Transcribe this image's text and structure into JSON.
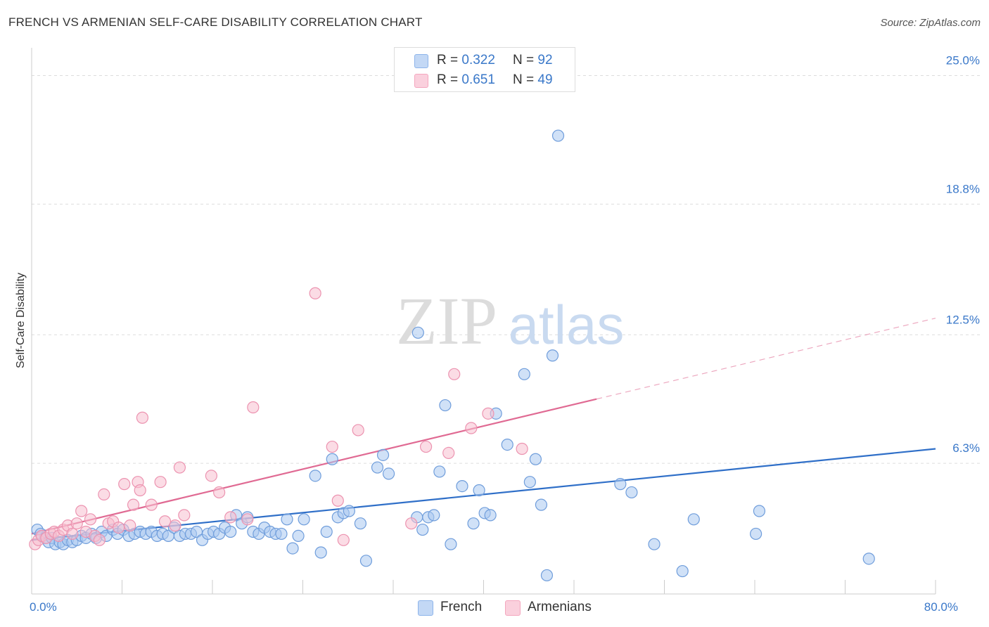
{
  "header": {
    "title": "FRENCH VS ARMENIAN SELF-CARE DISABILITY CORRELATION CHART",
    "source": "Source: ZipAtlas.com"
  },
  "watermark": {
    "zip": "ZIP",
    "atlas": "atlas"
  },
  "legend": {
    "r_label": "R =",
    "n_label": "N =",
    "entries": [
      {
        "name": "French",
        "r": "0.322",
        "n": "92",
        "color": "#8db4ea"
      },
      {
        "name": "Armenians",
        "r": "0.651",
        "n": "49",
        "color": "#f4a6be"
      }
    ]
  },
  "colors": {
    "french_fill": "#a9c8f0",
    "french_stroke": "#6f9ddb",
    "french_line": "#2f6fc8",
    "armenian_fill": "#f8bfd0",
    "armenian_stroke": "#ec93b0",
    "armenian_line": "#e06a93",
    "tick_label": "#3a78c9",
    "grid": "#dddddd"
  },
  "chart_data": {
    "type": "scatter",
    "title": "FRENCH VS ARMENIAN SELF-CARE DISABILITY CORRELATION CHART",
    "xlabel": "",
    "ylabel": "Self-Care Disability",
    "xlim": [
      0,
      80
    ],
    "ylim": [
      0,
      26
    ],
    "x_tick_labels": [
      {
        "value": 0,
        "label": "0.0%"
      },
      {
        "value": 80,
        "label": "80.0%"
      }
    ],
    "y_tick_labels": [
      {
        "value": 6.3,
        "label": "6.3%"
      },
      {
        "value": 12.5,
        "label": "12.5%"
      },
      {
        "value": 18.8,
        "label": "18.8%"
      },
      {
        "value": 25.0,
        "label": "25.0%"
      }
    ],
    "grid": true,
    "legend_position": "top-center",
    "series": [
      {
        "name": "French",
        "trend": {
          "x": [
            0,
            80
          ],
          "y": [
            2.6,
            7.0
          ]
        },
        "points": [
          [
            0.5,
            3.1
          ],
          [
            0.8,
            2.9
          ],
          [
            1.2,
            2.7
          ],
          [
            1.5,
            2.5
          ],
          [
            1.8,
            2.7
          ],
          [
            2.1,
            2.4
          ],
          [
            2.5,
            2.5
          ],
          [
            2.8,
            2.4
          ],
          [
            3.2,
            2.6
          ],
          [
            3.6,
            2.5
          ],
          [
            4.0,
            2.6
          ],
          [
            4.4,
            2.8
          ],
          [
            4.8,
            2.7
          ],
          [
            5.3,
            2.9
          ],
          [
            5.7,
            2.7
          ],
          [
            6.2,
            3.0
          ],
          [
            6.6,
            2.8
          ],
          [
            7.2,
            3.1
          ],
          [
            7.6,
            2.9
          ],
          [
            8.1,
            3.1
          ],
          [
            8.6,
            2.8
          ],
          [
            9.1,
            2.9
          ],
          [
            9.6,
            3.0
          ],
          [
            10.1,
            2.9
          ],
          [
            10.6,
            3.0
          ],
          [
            11.1,
            2.8
          ],
          [
            11.6,
            2.9
          ],
          [
            12.1,
            2.8
          ],
          [
            12.6,
            3.2
          ],
          [
            13.1,
            2.8
          ],
          [
            13.6,
            2.9
          ],
          [
            14.1,
            2.9
          ],
          [
            14.6,
            3.0
          ],
          [
            15.1,
            2.6
          ],
          [
            15.6,
            2.9
          ],
          [
            16.1,
            3.0
          ],
          [
            16.6,
            2.9
          ],
          [
            17.1,
            3.2
          ],
          [
            17.6,
            3.0
          ],
          [
            18.1,
            3.8
          ],
          [
            18.6,
            3.4
          ],
          [
            19.1,
            3.7
          ],
          [
            19.6,
            3.0
          ],
          [
            20.1,
            2.9
          ],
          [
            20.6,
            3.2
          ],
          [
            21.1,
            3.0
          ],
          [
            21.6,
            2.9
          ],
          [
            22.1,
            2.9
          ],
          [
            22.6,
            3.6
          ],
          [
            23.1,
            2.2
          ],
          [
            23.6,
            2.8
          ],
          [
            24.1,
            3.6
          ],
          [
            25.1,
            5.7
          ],
          [
            25.6,
            2.0
          ],
          [
            26.1,
            3.0
          ],
          [
            26.6,
            6.5
          ],
          [
            27.1,
            3.7
          ],
          [
            27.6,
            3.9
          ],
          [
            28.1,
            4.0
          ],
          [
            29.1,
            3.4
          ],
          [
            29.6,
            1.6
          ],
          [
            30.6,
            6.1
          ],
          [
            31.1,
            6.7
          ],
          [
            31.6,
            5.8
          ],
          [
            34.1,
            3.7
          ],
          [
            34.6,
            3.1
          ],
          [
            34.2,
            12.6
          ],
          [
            35.1,
            3.7
          ],
          [
            35.6,
            3.8
          ],
          [
            36.1,
            5.9
          ],
          [
            37.1,
            2.4
          ],
          [
            36.6,
            9.1
          ],
          [
            38.1,
            5.2
          ],
          [
            39.1,
            3.4
          ],
          [
            39.6,
            5.0
          ],
          [
            40.1,
            3.9
          ],
          [
            40.6,
            3.8
          ],
          [
            41.1,
            8.7
          ],
          [
            42.1,
            7.2
          ],
          [
            43.6,
            10.6
          ],
          [
            44.1,
            5.4
          ],
          [
            44.6,
            6.5
          ],
          [
            45.1,
            4.3
          ],
          [
            45.6,
            0.9
          ],
          [
            46.1,
            11.5
          ],
          [
            46.6,
            22.1
          ],
          [
            52.1,
            5.3
          ],
          [
            53.1,
            4.9
          ],
          [
            55.1,
            2.4
          ],
          [
            57.6,
            1.1
          ],
          [
            58.6,
            3.6
          ],
          [
            64.1,
            2.9
          ],
          [
            64.4,
            4.0
          ],
          [
            74.1,
            1.7
          ]
        ]
      },
      {
        "name": "Armenians",
        "trend": {
          "x": [
            0,
            50
          ],
          "y": [
            2.9,
            9.4
          ]
        },
        "trend_extension": {
          "x": [
            50,
            80
          ],
          "y": [
            9.4,
            13.3
          ]
        },
        "points": [
          [
            0.3,
            2.4
          ],
          [
            0.6,
            2.6
          ],
          [
            0.9,
            2.8
          ],
          [
            1.3,
            2.7
          ],
          [
            1.7,
            2.9
          ],
          [
            2.0,
            3.0
          ],
          [
            2.4,
            2.8
          ],
          [
            2.8,
            3.1
          ],
          [
            3.2,
            3.3
          ],
          [
            3.6,
            2.9
          ],
          [
            4.0,
            3.4
          ],
          [
            4.4,
            4.0
          ],
          [
            4.8,
            3.0
          ],
          [
            5.2,
            3.6
          ],
          [
            5.6,
            2.8
          ],
          [
            6.0,
            2.6
          ],
          [
            6.4,
            4.8
          ],
          [
            6.8,
            3.4
          ],
          [
            7.2,
            3.5
          ],
          [
            7.7,
            3.2
          ],
          [
            8.2,
            5.3
          ],
          [
            8.7,
            3.3
          ],
          [
            9.0,
            4.3
          ],
          [
            9.4,
            5.4
          ],
          [
            9.6,
            5.0
          ],
          [
            9.8,
            8.5
          ],
          [
            10.6,
            4.3
          ],
          [
            11.4,
            5.4
          ],
          [
            11.8,
            3.5
          ],
          [
            12.7,
            3.3
          ],
          [
            13.1,
            6.1
          ],
          [
            13.5,
            3.8
          ],
          [
            15.9,
            5.7
          ],
          [
            16.6,
            4.9
          ],
          [
            17.6,
            3.7
          ],
          [
            19.1,
            3.6
          ],
          [
            19.6,
            9.0
          ],
          [
            25.1,
            14.5
          ],
          [
            26.6,
            7.1
          ],
          [
            27.1,
            4.5
          ],
          [
            27.6,
            2.6
          ],
          [
            28.9,
            7.9
          ],
          [
            33.6,
            3.4
          ],
          [
            34.9,
            7.1
          ],
          [
            36.9,
            6.8
          ],
          [
            37.4,
            10.6
          ],
          [
            38.9,
            8.0
          ],
          [
            40.4,
            8.7
          ],
          [
            43.4,
            7.0
          ]
        ]
      }
    ]
  }
}
